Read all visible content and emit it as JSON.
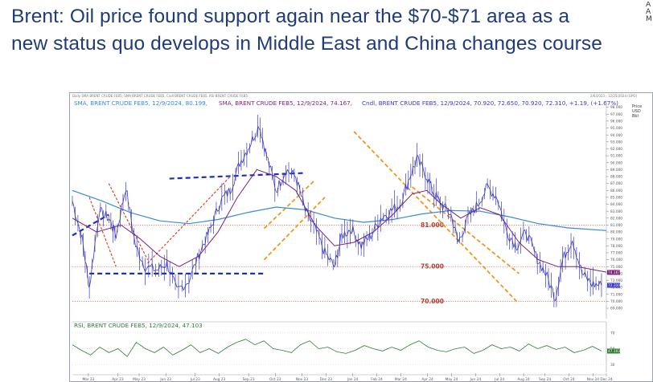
{
  "headline": {
    "line1": "Brent: Oil price found support again near the $70-$71 area as a",
    "line2": "new status quo develops in Middle East and China changes course"
  },
  "corner_marks": [
    "A",
    "A",
    "M"
  ],
  "colors": {
    "title": "#1f3c78",
    "price": "#3a3ac0",
    "sma_long": "#3a8ad6",
    "sma_short": "#7b1f7b",
    "support_line": "#1a2fbf",
    "channel_orange": "#f0961e",
    "trend_red": "#e0301e",
    "level_line": "#c0392b",
    "rsi": "#2e7d32"
  },
  "chart_data": {
    "type": "line",
    "header": "Daily SMA BRENT CRUDE FEB5, SMA BRENT CRUDE FEB5, Cndl BRENT CRUDE FEB5, RSI BRENT CRUDE FEB5",
    "header_date": "2/6/2023 - 12/25/2024 (GPO)",
    "legend": [
      "SMA, BRENT CRUDE FEB5, 12/9/2024, 80.199,",
      "SMA, BRENT CRUDE FEB5, 12/9/2024, 74.167,",
      "Cndl, BRENT CRUDE FEB5, 12/9/2024, 70.920, 72.650, 70.920, 72.310, +1.19, (+1.67%)"
    ],
    "axis_title": [
      "Price",
      "USD",
      "Bbl"
    ],
    "ylim": [
      67.5,
      99
    ],
    "y_ticks": [
      69,
      70,
      71,
      72,
      73,
      74,
      75,
      76,
      77,
      78,
      79,
      80,
      81,
      82,
      83,
      84,
      85,
      86,
      87,
      88,
      89,
      90,
      91,
      92,
      93,
      94,
      95,
      96,
      97,
      98
    ],
    "levels": [
      {
        "value": 81.0,
        "label": "81.000"
      },
      {
        "value": 75.0,
        "label": "75.000"
      },
      {
        "value": 70.0,
        "label": "70.000"
      }
    ],
    "last_value_labels": [
      "74.167",
      "72.310"
    ],
    "x_labels": [
      "Mar 23",
      "Apr 23",
      "May 23",
      "Jun 23",
      "Jul 23",
      "Aug 23",
      "Sep 23",
      "Oct 23",
      "Nov 23",
      "Dec 23",
      "Jan 24",
      "Feb 24",
      "Mar 24",
      "Apr 24",
      "May 24",
      "Jun 24",
      "Jul 24",
      "Aug 24",
      "Sep 24",
      "Oct 24",
      "Nov 24",
      "Dec 24"
    ],
    "x_fracs": [
      0.03,
      0.085,
      0.125,
      0.175,
      0.23,
      0.275,
      0.33,
      0.38,
      0.43,
      0.475,
      0.525,
      0.57,
      0.615,
      0.665,
      0.71,
      0.755,
      0.8,
      0.845,
      0.885,
      0.93,
      0.975,
      1.0
    ],
    "price_series": {
      "name": "Cndl, BRENT CRUDE FEB5",
      "points": [
        [
          0.0,
          84.5
        ],
        [
          0.02,
          79.0
        ],
        [
          0.035,
          72.0
        ],
        [
          0.055,
          83.0
        ],
        [
          0.075,
          82.0
        ],
        [
          0.09,
          79.5
        ],
        [
          0.11,
          86.5
        ],
        [
          0.13,
          78.0
        ],
        [
          0.15,
          75.0
        ],
        [
          0.175,
          74.5
        ],
        [
          0.195,
          75.5
        ],
        [
          0.215,
          71.5
        ],
        [
          0.24,
          73.0
        ],
        [
          0.265,
          77.5
        ],
        [
          0.285,
          80.5
        ],
        [
          0.305,
          84.5
        ],
        [
          0.325,
          86.0
        ],
        [
          0.345,
          90.0
        ],
        [
          0.365,
          92.5
        ],
        [
          0.385,
          95.5
        ],
        [
          0.4,
          91.0
        ],
        [
          0.42,
          86.0
        ],
        [
          0.44,
          89.0
        ],
        [
          0.46,
          88.0
        ],
        [
          0.48,
          83.0
        ],
        [
          0.5,
          80.5
        ],
        [
          0.52,
          77.0
        ],
        [
          0.54,
          75.0
        ],
        [
          0.555,
          79.5
        ],
        [
          0.575,
          80.5
        ],
        [
          0.595,
          78.0
        ],
        [
          0.615,
          79.5
        ],
        [
          0.635,
          82.0
        ],
        [
          0.655,
          83.0
        ],
        [
          0.675,
          84.0
        ],
        [
          0.695,
          88.0
        ],
        [
          0.71,
          90.5
        ],
        [
          0.73,
          88.0
        ],
        [
          0.745,
          85.5
        ],
        [
          0.76,
          84.0
        ],
        [
          0.78,
          82.5
        ],
        [
          0.795,
          78.5
        ],
        [
          0.815,
          82.0
        ],
        [
          0.835,
          84.0
        ],
        [
          0.855,
          86.5
        ],
        [
          0.875,
          85.0
        ],
        [
          0.895,
          80.0
        ],
        [
          0.915,
          78.0
        ],
        [
          0.935,
          80.0
        ],
        [
          0.955,
          76.5
        ],
        [
          0.975,
          74.0
        ],
        [
          0.995,
          70.5
        ],
        [
          1.01,
          76.0
        ],
        [
          1.03,
          79.0
        ],
        [
          1.05,
          74.0
        ],
        [
          1.07,
          72.5
        ],
        [
          1.09,
          72.3
        ]
      ]
    },
    "sma_long": {
      "name": "SMA, BRENT CRUDE FEB5, 80.199",
      "points": [
        [
          0.0,
          86.0
        ],
        [
          0.06,
          84.5
        ],
        [
          0.12,
          82.8
        ],
        [
          0.18,
          81.6
        ],
        [
          0.24,
          81.2
        ],
        [
          0.3,
          81.8
        ],
        [
          0.36,
          82.8
        ],
        [
          0.42,
          83.6
        ],
        [
          0.48,
          83.2
        ],
        [
          0.54,
          82.0
        ],
        [
          0.6,
          81.4
        ],
        [
          0.66,
          81.8
        ],
        [
          0.72,
          82.6
        ],
        [
          0.78,
          83.1
        ],
        [
          0.84,
          83.0
        ],
        [
          0.9,
          82.2
        ],
        [
          0.96,
          81.2
        ],
        [
          1.02,
          80.6
        ],
        [
          1.1,
          80.2
        ]
      ]
    },
    "sma_short": {
      "name": "SMA, BRENT CRUDE FEB5, 74.167",
      "points": [
        [
          0.0,
          82.0
        ],
        [
          0.05,
          80.0
        ],
        [
          0.1,
          81.0
        ],
        [
          0.14,
          79.0
        ],
        [
          0.18,
          76.5
        ],
        [
          0.22,
          75.0
        ],
        [
          0.26,
          76.5
        ],
        [
          0.3,
          80.0
        ],
        [
          0.34,
          85.0
        ],
        [
          0.38,
          89.0
        ],
        [
          0.42,
          88.0
        ],
        [
          0.46,
          86.0
        ],
        [
          0.5,
          81.0
        ],
        [
          0.54,
          78.0
        ],
        [
          0.58,
          78.5
        ],
        [
          0.62,
          80.0
        ],
        [
          0.66,
          82.5
        ],
        [
          0.7,
          85.5
        ],
        [
          0.73,
          86.0
        ],
        [
          0.76,
          84.0
        ],
        [
          0.8,
          82.0
        ],
        [
          0.84,
          83.5
        ],
        [
          0.88,
          82.5
        ],
        [
          0.92,
          78.5
        ],
        [
          0.96,
          76.0
        ],
        [
          1.0,
          75.0
        ],
        [
          1.04,
          75.0
        ],
        [
          1.1,
          74.2
        ]
      ]
    },
    "drawings": [
      {
        "kind": "support",
        "points": [
          [
            0.035,
            74.0
          ],
          [
            0.395,
            74.0
          ]
        ]
      },
      {
        "kind": "support",
        "points": [
          [
            0.0,
            79.5
          ],
          [
            0.075,
            82.5
          ]
        ]
      },
      {
        "kind": "resistance",
        "points": [
          [
            0.2,
            87.7
          ],
          [
            0.475,
            88.5
          ]
        ]
      },
      {
        "kind": "channel",
        "points": [
          [
            0.035,
            85.0
          ],
          [
            0.09,
            75.0
          ]
        ]
      },
      {
        "kind": "channel",
        "points": [
          [
            0.075,
            87.0
          ],
          [
            0.155,
            76.0
          ]
        ]
      },
      {
        "kind": "channel",
        "points": [
          [
            0.155,
            75.5
          ],
          [
            0.325,
            88.0
          ]
        ]
      },
      {
        "kind": "orange",
        "points": [
          [
            0.395,
            76.0
          ],
          [
            0.52,
            85.0
          ]
        ]
      },
      {
        "kind": "orange",
        "points": [
          [
            0.395,
            80.5
          ],
          [
            0.5,
            87.5
          ]
        ]
      },
      {
        "kind": "orange",
        "points": [
          [
            0.58,
            94.5
          ],
          [
            0.915,
            70.0
          ]
        ]
      },
      {
        "kind": "orange",
        "points": [
          [
            0.7,
            86.5
          ],
          [
            0.92,
            74.0
          ]
        ]
      }
    ],
    "rsi": {
      "legend": "RSI, BRENT CRUDE FEB5, 12/9/2024, 47.103",
      "ylim": [
        20,
        80
      ],
      "y_ticks": [
        30,
        50,
        70
      ],
      "last_label": "47.103",
      "values": [
        55,
        48,
        42,
        52,
        45,
        50,
        40,
        58,
        50,
        45,
        52,
        42,
        48,
        55,
        45,
        50,
        44,
        52,
        58,
        62,
        55,
        60,
        50,
        48,
        45,
        55,
        60,
        50,
        52,
        46,
        44,
        48,
        54,
        50,
        47,
        52,
        48,
        55,
        60,
        52,
        48,
        46,
        50,
        52,
        44,
        48,
        55,
        50,
        52,
        47,
        56,
        50,
        54,
        49,
        52,
        45,
        48,
        53,
        47
      ]
    }
  }
}
